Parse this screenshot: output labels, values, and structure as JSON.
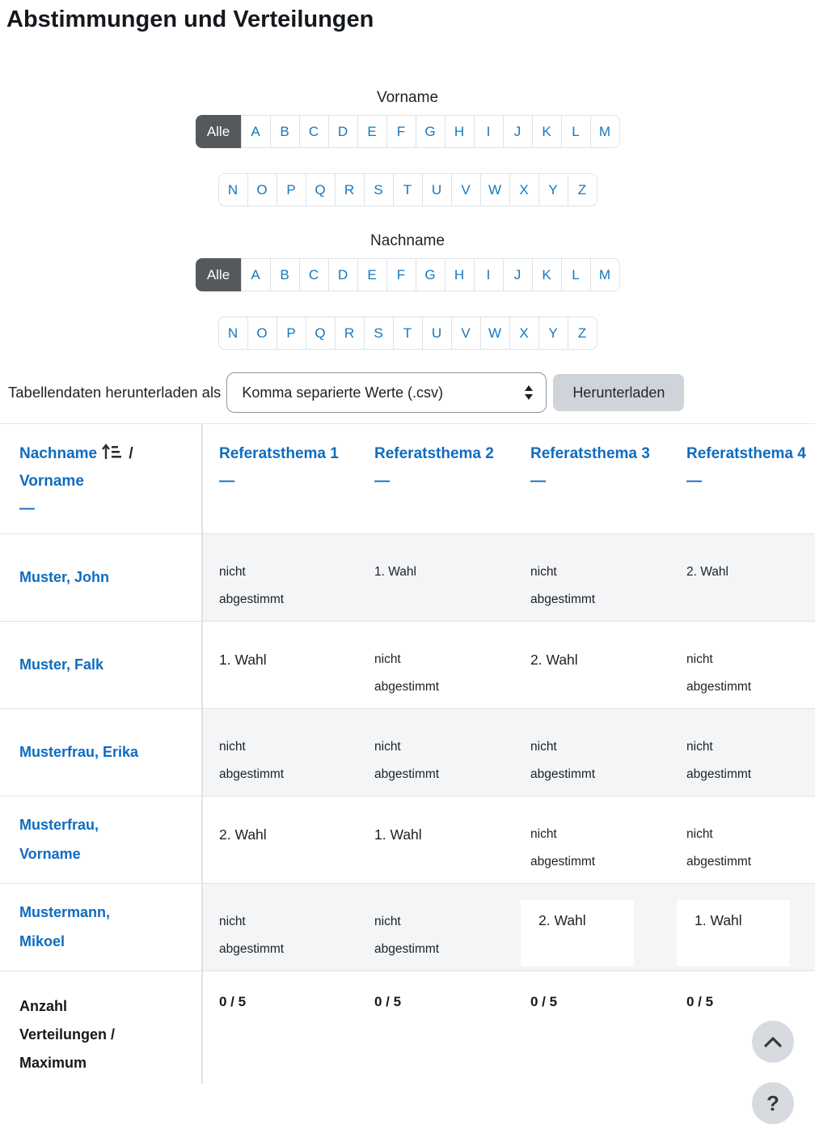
{
  "page_title": "Abstimmungen und Verteilungen",
  "filters": {
    "first_label": "Vorname",
    "second_label": "Nachname",
    "all_label": "Alle",
    "letters_row1": [
      "A",
      "B",
      "C",
      "D",
      "E",
      "F",
      "G",
      "H",
      "I",
      "J",
      "K",
      "L",
      "M"
    ],
    "letters_row2": [
      "N",
      "O",
      "P",
      "Q",
      "R",
      "S",
      "T",
      "U",
      "V",
      "W",
      "X",
      "Y",
      "Z"
    ]
  },
  "download": {
    "label": "Tabellendaten herunterladen als",
    "format_selected": "Komma separierte Werte (.csv)",
    "button": "Herunterladen"
  },
  "table": {
    "header": {
      "name_sort_primary": "Nachname",
      "name_separator": "/",
      "name_sort_secondary": "Vorname",
      "collapse": "—",
      "columns": [
        {
          "label": "Referatsthema 1",
          "collapse": "—"
        },
        {
          "label": "Referatsthema 2",
          "collapse": "—"
        },
        {
          "label": "Referatsthema 3",
          "collapse": "—"
        },
        {
          "label": "Referatsthema 4",
          "collapse": "—"
        }
      ]
    },
    "rows": [
      {
        "name": "Muster, John",
        "cells": [
          {
            "text": "nicht abgestimmt"
          },
          {
            "text": "1. Wahl"
          },
          {
            "text": "nicht abgestimmt"
          },
          {
            "text": "2. Wahl"
          }
        ]
      },
      {
        "name": "Muster, Falk",
        "cells": [
          {
            "text": "1. Wahl",
            "large": true
          },
          {
            "text": "nicht abgestimmt"
          },
          {
            "text": "2. Wahl",
            "large": true
          },
          {
            "text": "nicht abgestimmt"
          }
        ]
      },
      {
        "name": "Musterfrau, Erika",
        "cells": [
          {
            "text": "nicht abgestimmt"
          },
          {
            "text": "nicht abgestimmt"
          },
          {
            "text": "nicht abgestimmt"
          },
          {
            "text": "nicht abgestimmt"
          }
        ]
      },
      {
        "name": "Musterfrau, Vorname",
        "cells": [
          {
            "text": "2. Wahl",
            "large": true
          },
          {
            "text": "1. Wahl",
            "large": true
          },
          {
            "text": "nicht abgestimmt"
          },
          {
            "text": "nicht abgestimmt"
          }
        ]
      },
      {
        "name": "Mustermann, Mikoel",
        "cells": [
          {
            "text": "nicht abgestimmt"
          },
          {
            "text": "nicht abgestimmt"
          },
          {
            "text": "2. Wahl",
            "large": true,
            "box": true
          },
          {
            "text": "1. Wahl",
            "large": true,
            "box": true
          }
        ]
      }
    ],
    "footer": {
      "label": "Anzahl Verteilungen / Maximum",
      "values": [
        "0 / 5",
        "0 / 5",
        "0 / 5",
        "0 / 5"
      ]
    }
  },
  "floating": {
    "help": "?"
  },
  "colors": {
    "link": "#0f6cbf",
    "letter_link": "#1478be",
    "selected_filter_bg": "#55595c",
    "row_stripe": "#f4f5f6",
    "table_border": "#dee2e6",
    "download_button_bg": "#ced4da",
    "float_button_bg": "#d7dbdf"
  }
}
